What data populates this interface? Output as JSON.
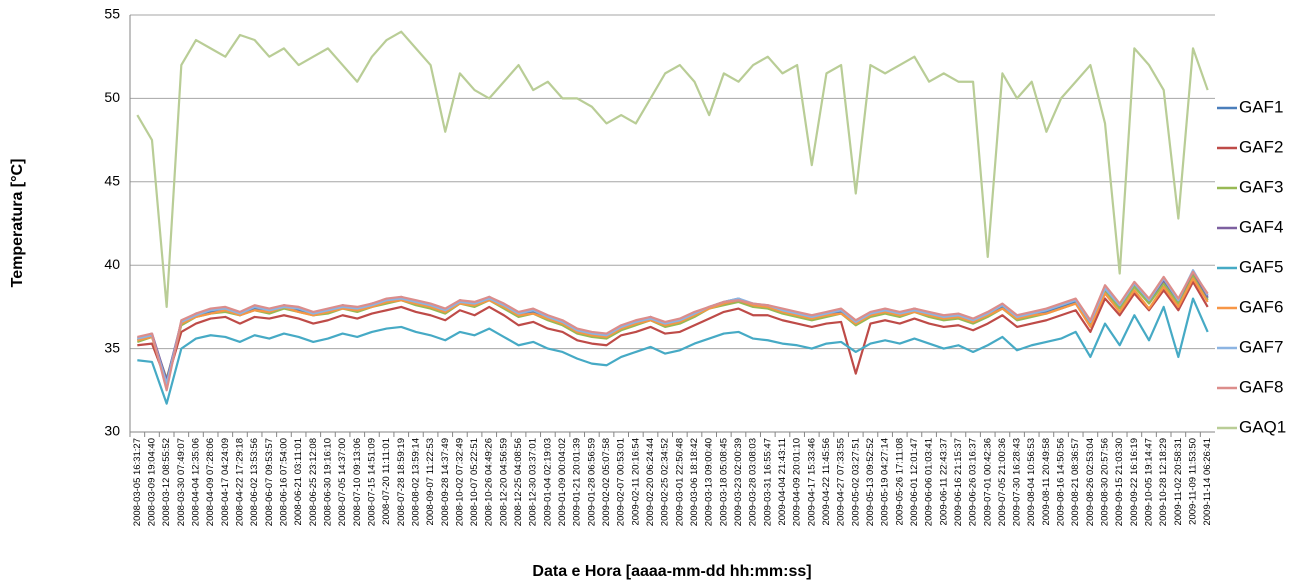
{
  "chart_data": {
    "type": "line",
    "y_label": "Temperatura [°C]",
    "x_label": "Data e Hora  [aaaa-mm-dd hh:mm:ss]",
    "ylim": [
      30,
      55
    ],
    "yticks": [
      30,
      35,
      40,
      45,
      50,
      55
    ],
    "grid": true,
    "legend": "right",
    "categories": [
      "2008-03-05 16:31:27",
      "2008-03-09 19:04:40",
      "2008-03-12 08:55:52",
      "2008-03-30 07:49:07",
      "2008-04-04 12:35:06",
      "2008-04-09 07:28:06",
      "2008-04-17 04:24:09",
      "2008-04-22 17:29:18",
      "2008-06-02 13:53:56",
      "2008-06-07 09:53:57",
      "2008-06-16 07:54:00",
      "2008-06-21 03:11:01",
      "2008-06-25 23:12:08",
      "2008-06-30 19:16:10",
      "2008-07-05 14:37:00",
      "2008-07-10 09:13:06",
      "2008-07-15 14:51:09",
      "2008-07-20 11:11:01",
      "2008-07-28 18:59:19",
      "2008-08-02 13:59:14",
      "2008-09-07 11:22:53",
      "2008-09-28 14:37:49",
      "2008-10-02 07:32:49",
      "2008-10-07 05:22:51",
      "2008-10-26 04:49:26",
      "2008-12-20 04:56:59",
      "2008-12-25 04:08:56",
      "2008-12-30 03:37:01",
      "2009-01-04 02:19:03",
      "2009-01-09 00:04:02",
      "2009-01-21 20:01:39",
      "2009-01-28 06:56:59",
      "2009-02-02 05:07:58",
      "2009-02-07 00:53:01",
      "2009-02-11 20:16:54",
      "2009-02-20 06:24:44",
      "2009-02-25 02:34:52",
      "2009-03-01 22:50:48",
      "2009-03-06 18:18:42",
      "2009-03-13 09:00:40",
      "2009-03-18 05:08:45",
      "2009-03-23 02:00:39",
      "2009-03-28 03:08:03",
      "2009-03-31 16:55:47",
      "2009-04-04 21:43:11",
      "2009-04-09 20:01:10",
      "2009-04-17 15:33:46",
      "2009-04-22 11:45:56",
      "2009-04-27 07:33:55",
      "2009-05-02 03:27:51",
      "2009-05-13 09:52:52",
      "2009-05-19 04:27:14",
      "2009-05-26 17:11:08",
      "2009-06-01 12:01:47",
      "2009-06-06 01:03:41",
      "2009-06-11 22:43:37",
      "2009-06-16 21:15:37",
      "2009-06-26 03:16:37",
      "2009-07-01 00:42:36",
      "2009-07-05 21:00:36",
      "2009-07-30 16:28:43",
      "2009-08-04 10:56:53",
      "2009-08-11 20:49:58",
      "2009-08-16 14:50:56",
      "2009-08-21 08:36:57",
      "2009-08-26 02:53:04",
      "2009-08-30 20:57:56",
      "2009-09-15 21:03:30",
      "2009-09-22 16:16:19",
      "2009-10-05 19:14:47",
      "2009-10-28 12:18:29",
      "2009-11-02 20:58:31",
      "2009-11-09 11:53:50",
      "2009-11-14 06:26:41"
    ],
    "series": [
      {
        "name": "GAF1",
        "color": "#4a7ebb",
        "values": [
          35.5,
          35.8,
          33,
          36.5,
          37,
          37.2,
          37.3,
          37,
          37.4,
          37.2,
          37.5,
          37.3,
          37,
          37.2,
          37.5,
          37.3,
          37.6,
          37.8,
          38,
          37.7,
          37.5,
          37.2,
          37.8,
          37.6,
          38,
          37.5,
          37,
          37.2,
          36.8,
          36.5,
          36,
          35.8,
          35.7,
          36.2,
          36.5,
          36.8,
          36.4,
          36.6,
          37,
          37.5,
          37.8,
          38,
          37.6,
          37.5,
          37.2,
          37,
          36.8,
          37,
          37.2,
          36.5,
          37,
          37.2,
          37,
          37.3,
          37,
          36.8,
          36.9,
          36.6,
          37,
          37.5,
          36.8,
          37,
          37.2,
          37.5,
          37.8,
          36.5,
          38.5,
          37.5,
          38.8,
          37.8,
          39,
          37.8,
          39.5,
          38
        ]
      },
      {
        "name": "GAF2",
        "color": "#be4b48",
        "values": [
          35.2,
          35.3,
          33,
          36,
          36.5,
          36.8,
          36.9,
          36.5,
          36.9,
          36.8,
          37,
          36.8,
          36.5,
          36.7,
          37,
          36.8,
          37.1,
          37.3,
          37.5,
          37.2,
          37,
          36.7,
          37.3,
          37,
          37.5,
          37,
          36.4,
          36.6,
          36.2,
          36,
          35.5,
          35.3,
          35.2,
          35.8,
          36,
          36.3,
          35.9,
          36,
          36.4,
          36.8,
          37.2,
          37.4,
          37,
          37,
          36.7,
          36.5,
          36.3,
          36.5,
          36.6,
          33.5,
          36.5,
          36.7,
          36.5,
          36.8,
          36.5,
          36.3,
          36.4,
          36.1,
          36.5,
          37,
          36.3,
          36.5,
          36.7,
          37,
          37.3,
          36,
          38,
          37,
          38.3,
          37.3,
          38.5,
          37.3,
          39,
          37.5
        ]
      },
      {
        "name": "GAF3",
        "color": "#98b954",
        "values": [
          35.4,
          35.7,
          33.2,
          36.4,
          36.9,
          37.1,
          37.2,
          37,
          37.3,
          37.1,
          37.4,
          37.2,
          37,
          37.1,
          37.4,
          37.2,
          37.5,
          37.7,
          37.9,
          37.6,
          37.4,
          37.1,
          37.7,
          37.5,
          37.9,
          37.4,
          36.9,
          37.1,
          36.7,
          36.4,
          35.9,
          35.7,
          35.6,
          36.1,
          36.4,
          36.7,
          36.3,
          36.5,
          36.9,
          37.4,
          37.6,
          37.8,
          37.5,
          37.4,
          37.1,
          36.9,
          36.7,
          36.9,
          37.1,
          36.4,
          36.9,
          37.1,
          36.9,
          37.2,
          36.9,
          36.7,
          36.8,
          36.5,
          36.9,
          37.4,
          36.7,
          36.9,
          37.1,
          37.4,
          37.7,
          36.4,
          38.4,
          37.4,
          38.7,
          37.7,
          38.9,
          37.7,
          39.4,
          37.9
        ]
      },
      {
        "name": "GAF4",
        "color": "#7d60a0",
        "values": [
          35.6,
          35.9,
          33.1,
          36.6,
          37.1,
          37.3,
          37.4,
          37.1,
          37.5,
          37.3,
          37.6,
          37.4,
          37.1,
          37.3,
          37.6,
          37.4,
          37.7,
          37.9,
          38.1,
          37.8,
          37.6,
          37.3,
          37.9,
          37.7,
          38.1,
          37.6,
          37.1,
          37.3,
          36.9,
          36.6,
          36.1,
          35.9,
          35.8,
          36.3,
          36.6,
          36.9,
          36.5,
          36.7,
          37.1,
          37.5,
          37.7,
          37.9,
          37.6,
          37.6,
          37.3,
          37.1,
          36.9,
          37.1,
          37.3,
          36.6,
          37.1,
          37.3,
          37.1,
          37.4,
          37.1,
          36.9,
          37,
          36.7,
          37.1,
          37.6,
          36.9,
          37.1,
          37.3,
          37.6,
          37.9,
          36.6,
          38.6,
          37.6,
          38.9,
          37.9,
          39.1,
          37.9,
          39.6,
          38.1
        ]
      },
      {
        "name": "GAF5",
        "color": "#46aac5",
        "values": [
          34.3,
          34.2,
          31.7,
          35,
          35.6,
          35.8,
          35.7,
          35.4,
          35.8,
          35.6,
          35.9,
          35.7,
          35.4,
          35.6,
          35.9,
          35.7,
          36,
          36.2,
          36.3,
          36,
          35.8,
          35.5,
          36,
          35.8,
          36.2,
          35.7,
          35.2,
          35.4,
          35,
          34.8,
          34.4,
          34.1,
          34,
          34.5,
          34.8,
          35.1,
          34.7,
          34.9,
          35.3,
          35.6,
          35.9,
          36,
          35.6,
          35.5,
          35.3,
          35.2,
          35,
          35.3,
          35.4,
          34.8,
          35.3,
          35.5,
          35.3,
          35.6,
          35.3,
          35,
          35.2,
          34.8,
          35.2,
          35.7,
          34.9,
          35.2,
          35.4,
          35.6,
          36,
          34.5,
          36.5,
          35.2,
          37,
          35.5,
          37.5,
          34.5,
          38,
          36
        ]
      },
      {
        "name": "GAF6",
        "color": "#f79646",
        "values": [
          35.5,
          35.7,
          32.8,
          36.5,
          36.9,
          37.1,
          37.3,
          37,
          37.3,
          37.2,
          37.5,
          37.2,
          37,
          37.2,
          37.4,
          37.3,
          37.5,
          37.8,
          37.9,
          37.7,
          37.5,
          37.2,
          37.7,
          37.6,
          37.9,
          37.5,
          37,
          37.1,
          36.8,
          36.5,
          36,
          35.8,
          35.7,
          36.2,
          36.5,
          36.7,
          36.4,
          36.6,
          37,
          37.4,
          37.7,
          37.9,
          37.6,
          37.5,
          37.2,
          37,
          36.8,
          37,
          37.1,
          36.5,
          37,
          37.2,
          37,
          37.2,
          37,
          36.8,
          36.9,
          36.6,
          37,
          37.4,
          36.8,
          37,
          37.1,
          37.4,
          37.7,
          36.3,
          38.3,
          37.2,
          38.5,
          37.4,
          38.7,
          37.5,
          39.2,
          37.8
        ]
      },
      {
        "name": "GAF7",
        "color": "#8cb4e2",
        "values": [
          35.6,
          35.8,
          32.9,
          36.6,
          37,
          37.3,
          37.4,
          37.1,
          37.5,
          37.3,
          37.5,
          37.4,
          37.1,
          37.3,
          37.5,
          37.4,
          37.6,
          37.9,
          38,
          37.8,
          37.6,
          37.3,
          37.8,
          37.7,
          38,
          37.6,
          37.1,
          37.3,
          36.9,
          36.6,
          36.1,
          35.9,
          35.8,
          36.3,
          36.6,
          36.8,
          36.5,
          36.7,
          37.1,
          37.5,
          37.8,
          38,
          37.7,
          37.6,
          37.3,
          37.1,
          36.9,
          37.1,
          37.3,
          36.6,
          37.1,
          37.3,
          37.1,
          37.3,
          37.1,
          36.9,
          37,
          36.7,
          37.1,
          37.6,
          36.9,
          37.1,
          37.3,
          37.6,
          37.9,
          36.6,
          38.6,
          37.6,
          38.9,
          37.9,
          39.2,
          37.9,
          39.7,
          38.2
        ]
      },
      {
        "name": "GAF8",
        "color": "#dc8d8b",
        "values": [
          35.7,
          35.9,
          32.5,
          36.7,
          37.1,
          37.4,
          37.5,
          37.2,
          37.6,
          37.4,
          37.6,
          37.5,
          37.2,
          37.4,
          37.6,
          37.5,
          37.7,
          38,
          38.1,
          37.9,
          37.7,
          37.4,
          37.9,
          37.8,
          38.1,
          37.7,
          37.2,
          37.4,
          37,
          36.7,
          36.2,
          36,
          35.9,
          36.4,
          36.7,
          36.9,
          36.6,
          36.8,
          37.2,
          37.5,
          37.8,
          37.9,
          37.7,
          37.6,
          37.4,
          37.2,
          37,
          37.2,
          37.4,
          36.7,
          37.2,
          37.4,
          37.2,
          37.4,
          37.2,
          37,
          37.1,
          36.8,
          37.2,
          37.7,
          37,
          37.2,
          37.4,
          37.7,
          38,
          36.7,
          38.8,
          37.7,
          39,
          38,
          39.3,
          38,
          39.6,
          38.3
        ]
      },
      {
        "name": "GAQ1",
        "color": "#b9cd96",
        "values": [
          49,
          47.5,
          37.5,
          52,
          53.5,
          53,
          52.5,
          53.8,
          53.5,
          52.5,
          53,
          52,
          52.5,
          53,
          52,
          51,
          52.5,
          53.5,
          54,
          53,
          52,
          48,
          51.5,
          50.5,
          50,
          51,
          52,
          50.5,
          51,
          50,
          50,
          49.5,
          48.5,
          49,
          48.5,
          50,
          51.5,
          52,
          51,
          49,
          51.5,
          51,
          52,
          52.5,
          51.5,
          52,
          46,
          51.5,
          52,
          44.3,
          52,
          51.5,
          52,
          52.5,
          51,
          51.5,
          51,
          51,
          40.5,
          51.5,
          50,
          51,
          48,
          50,
          51,
          52,
          48.5,
          39.5,
          53,
          52,
          50.5,
          42.8,
          53,
          50.5
        ]
      }
    ]
  }
}
